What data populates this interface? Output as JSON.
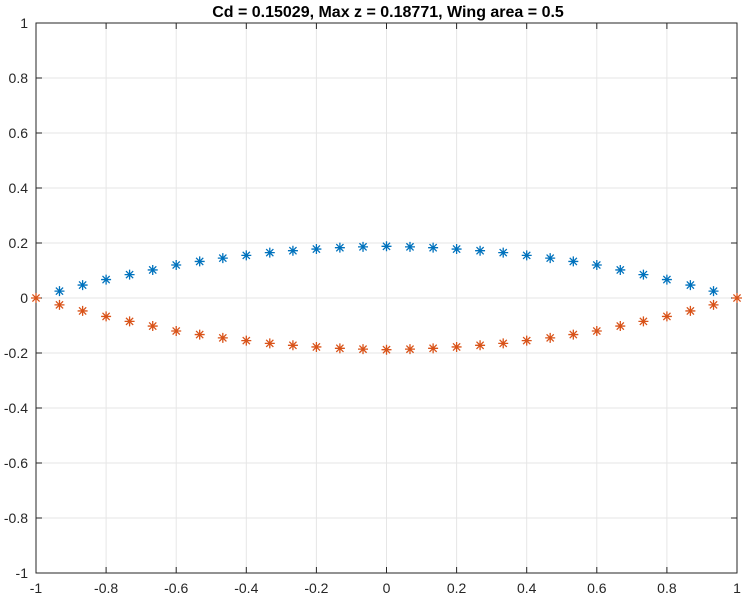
{
  "chart_data": {
    "type": "scatter",
    "title": "Cd = 0.15029, Max z = 0.18771, Wing area = 0.5",
    "xlabel": "",
    "ylabel": "",
    "xlim": [
      -1,
      1
    ],
    "ylim": [
      -1,
      1
    ],
    "grid": true,
    "marker": "asterisk",
    "xticks": [
      -1,
      -0.8,
      -0.6,
      -0.4,
      -0.2,
      0,
      0.2,
      0.4,
      0.6,
      0.8,
      1
    ],
    "xtick_labels": [
      "-1",
      "-0.8",
      "-0.6",
      "-0.4",
      "-0.2",
      "0",
      "0.2",
      "0.4",
      "0.6",
      "0.8",
      "1"
    ],
    "yticks": [
      -1,
      -0.8,
      -0.6,
      -0.4,
      -0.2,
      0,
      0.2,
      0.4,
      0.6,
      0.8,
      1
    ],
    "ytick_labels": [
      "-1",
      "-0.8",
      "-0.6",
      "-0.4",
      "-0.2",
      "0",
      "0.2",
      "0.4",
      "0.6",
      "0.8",
      "1"
    ],
    "series": [
      {
        "color": "#0072BD",
        "x": [
          -0.933,
          -0.867,
          -0.8,
          -0.733,
          -0.667,
          -0.6,
          -0.533,
          -0.467,
          -0.4,
          -0.333,
          -0.267,
          -0.2,
          -0.133,
          -0.067,
          0,
          0.067,
          0.133,
          0.2,
          0.267,
          0.333,
          0.4,
          0.467,
          0.533,
          0.6,
          0.667,
          0.733,
          0.8,
          0.867,
          0.933
        ],
        "y": [
          0.025,
          0.047,
          0.067,
          0.085,
          0.102,
          0.12,
          0.133,
          0.145,
          0.155,
          0.165,
          0.172,
          0.178,
          0.183,
          0.186,
          0.188,
          0.186,
          0.183,
          0.178,
          0.172,
          0.165,
          0.155,
          0.145,
          0.133,
          0.12,
          0.102,
          0.085,
          0.067,
          0.047,
          0.025
        ]
      },
      {
        "color": "#D95319",
        "x": [
          -1,
          -0.933,
          -0.867,
          -0.8,
          -0.733,
          -0.667,
          -0.6,
          -0.533,
          -0.467,
          -0.4,
          -0.333,
          -0.267,
          -0.2,
          -0.133,
          -0.067,
          0,
          0.067,
          0.133,
          0.2,
          0.267,
          0.333,
          0.4,
          0.467,
          0.533,
          0.6,
          0.667,
          0.733,
          0.8,
          0.867,
          0.933,
          1
        ],
        "y": [
          0,
          -0.025,
          -0.047,
          -0.067,
          -0.085,
          -0.102,
          -0.12,
          -0.133,
          -0.145,
          -0.155,
          -0.165,
          -0.172,
          -0.178,
          -0.183,
          -0.186,
          -0.188,
          -0.186,
          -0.183,
          -0.178,
          -0.172,
          -0.165,
          -0.155,
          -0.145,
          -0.133,
          -0.12,
          -0.102,
          -0.085,
          -0.067,
          -0.047,
          -0.025,
          0
        ]
      }
    ]
  }
}
